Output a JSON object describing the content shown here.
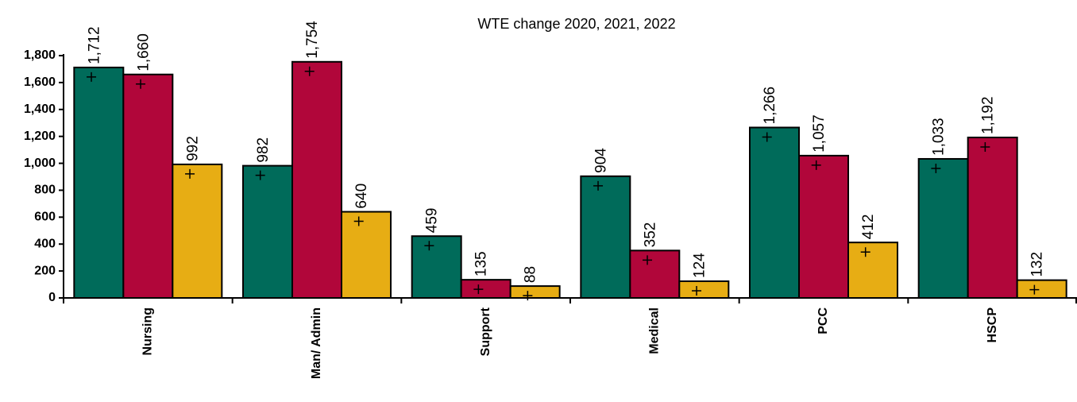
{
  "chart_data": {
    "type": "bar",
    "title": "WTE change 2020, 2021, 2022",
    "xlabel": "",
    "ylabel": "",
    "categories": [
      "Nursing",
      "Man/ Admin",
      "Support",
      "Medical",
      "PCC",
      "HSCP"
    ],
    "series": [
      {
        "values": [
          1712,
          982,
          459,
          904,
          1266,
          1033
        ],
        "color": "#006b5a"
      },
      {
        "values": [
          1660,
          1754,
          135,
          352,
          1057,
          1192
        ],
        "color": "#b1063a"
      },
      {
        "values": [
          992,
          640,
          88,
          124,
          412,
          132
        ],
        "color": "#e7ad14"
      }
    ],
    "data_labels": [
      [
        "1,712",
        "982",
        "459",
        "904",
        "1,266",
        "1,033"
      ],
      [
        "1,660",
        "1,754",
        "135",
        "352",
        "1,057",
        "1,192"
      ],
      [
        "992",
        "640",
        "88",
        "124",
        "412",
        "132"
      ]
    ],
    "ylim": [
      0,
      1800
    ],
    "yticks": [
      0,
      200,
      400,
      600,
      800,
      1000,
      1200,
      1400,
      1600,
      1800
    ],
    "ytick_labels": [
      "0",
      "200",
      "400",
      "600",
      "800",
      "1,000",
      "1,200",
      "1,400",
      "1,600",
      "1,800"
    ],
    "grid": false,
    "legend": "none"
  }
}
